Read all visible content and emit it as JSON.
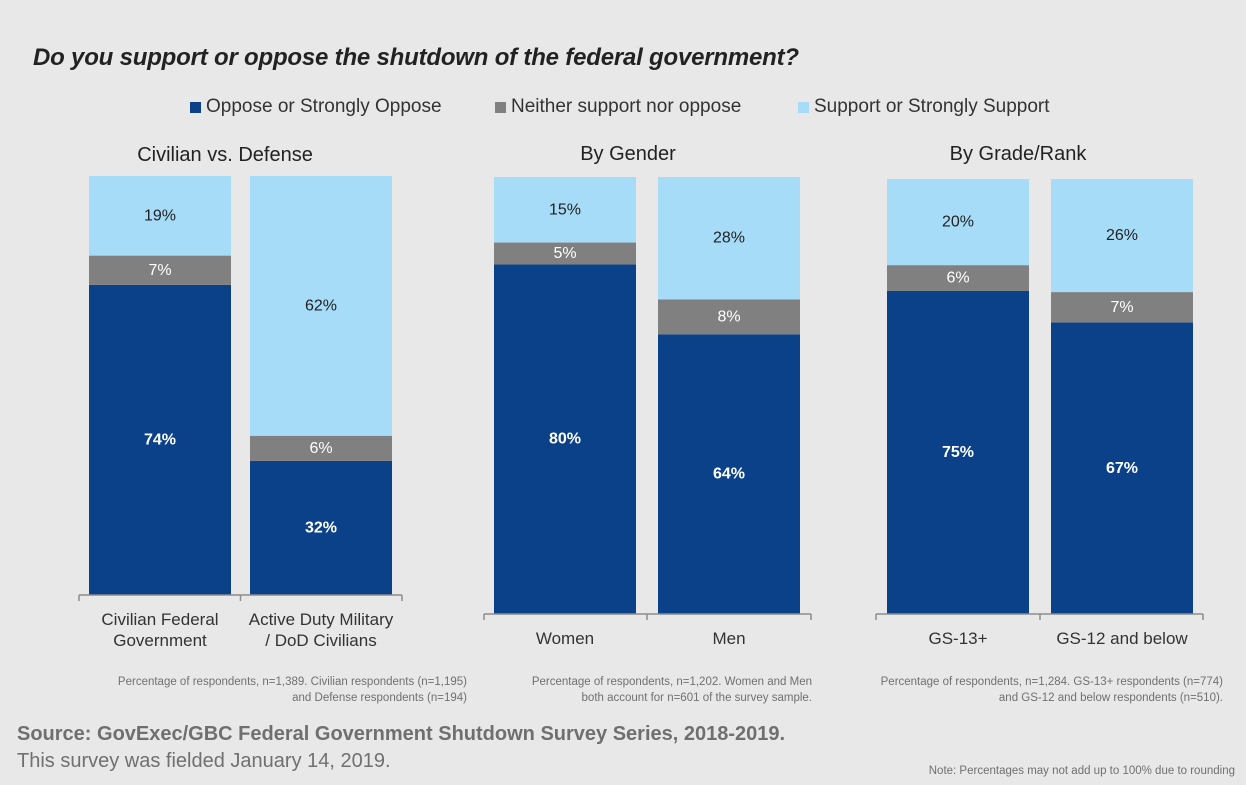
{
  "colors": {
    "oppose": "#0a4188",
    "neither": "#808080",
    "support": "#a6dcf8",
    "axis": "#8c8c8c",
    "label_dark": "#222222",
    "label_light": "#ffffff"
  },
  "chart_data": {
    "type": "bar",
    "stacked": true,
    "title": "Do you support or oppose the shutdown of the federal government?",
    "legend": {
      "position": "top",
      "entries": [
        "Oppose or Strongly Oppose",
        "Neither support nor oppose",
        "Support or Strongly Support"
      ]
    },
    "ylim": [
      0,
      100
    ],
    "grid": false,
    "panels": [
      {
        "title": "Civilian vs. Defense",
        "categories": [
          "Civilian Federal Government",
          "Active Duty Military / DoD Civilians"
        ],
        "category_lines": [
          [
            "Civilian Federal",
            "Government"
          ],
          [
            "Active Duty Military",
            "/ DoD Civilians"
          ]
        ],
        "series": [
          {
            "name": "Oppose or Strongly Oppose",
            "values": [
              74,
              32
            ]
          },
          {
            "name": "Neither support nor oppose",
            "values": [
              7,
              6
            ]
          },
          {
            "name": "Support or Strongly Support",
            "values": [
              19,
              62
            ]
          }
        ],
        "note": [
          "Percentage of respondents, n=1,389. Civilian respondents (n=1,195)",
          "and Defense respondents (n=194)"
        ]
      },
      {
        "title": "By Gender",
        "categories": [
          "Women",
          "Men"
        ],
        "category_lines": [
          [
            "Women"
          ],
          [
            "Men"
          ]
        ],
        "series": [
          {
            "name": "Oppose or Strongly Oppose",
            "values": [
              80,
              64
            ]
          },
          {
            "name": "Neither support nor oppose",
            "values": [
              5,
              8
            ]
          },
          {
            "name": "Support or Strongly Support",
            "values": [
              15,
              28
            ]
          }
        ],
        "note": [
          "Percentage of respondents, n=1,202. Women and Men",
          "both account for n=601 of the survey sample."
        ]
      },
      {
        "title": "By Grade/Rank",
        "categories": [
          "GS-13+",
          "GS-12 and below"
        ],
        "category_lines": [
          [
            "GS-13+"
          ],
          [
            "GS-12 and below"
          ]
        ],
        "series": [
          {
            "name": "Oppose or Strongly Oppose",
            "values": [
              75,
              67
            ]
          },
          {
            "name": "Neither support nor oppose",
            "values": [
              6,
              7
            ]
          },
          {
            "name": "Support or Strongly Support",
            "values": [
              20,
              26
            ]
          }
        ],
        "note": [
          "Percentage of respondents, n=1,284. GS-13+ respondents (n=774)",
          "and GS-12 and below respondents (n=510)."
        ]
      }
    ],
    "source": "Source: GovExec/GBC Federal Government Shutdown Survey Series, 2018-2019.",
    "fielded": "This survey was fielded January 14, 2019.",
    "footnote": "Note: Percentages may not add up to 100% due to rounding"
  }
}
